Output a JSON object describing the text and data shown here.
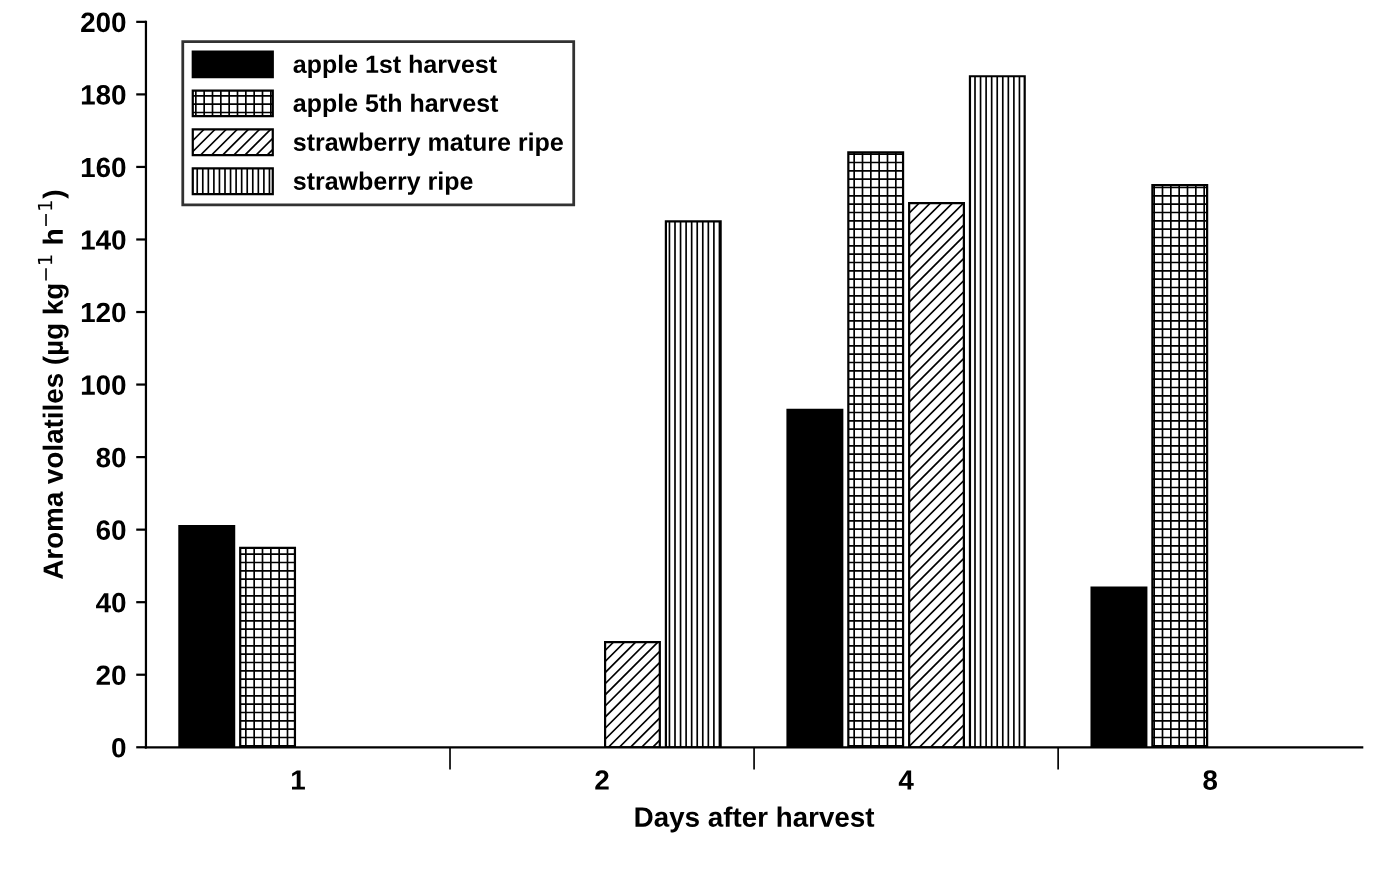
{
  "chart_data": {
    "type": "bar",
    "xlabel": "Days after harvest",
    "ylabel": "Aroma volatiles (µg kg$^{−1}$ h$^{−1}$)",
    "categories": [
      "1",
      "2",
      "4",
      "8"
    ],
    "series": [
      {
        "name": "apple 1st harvest",
        "color": "#000000",
        "values": [
          61,
          null,
          93,
          44
        ]
      },
      {
        "name": "apple 5th harvest",
        "color": "#000000",
        "values": [
          55,
          null,
          164,
          155
        ]
      },
      {
        "name": "strawberry mature ripe",
        "color": "#000000",
        "values": [
          null,
          29,
          150,
          null
        ]
      },
      {
        "name": "strawberry ripe",
        "color": "#000000",
        "values": [
          null,
          145,
          185,
          null
        ]
      }
    ],
    "ylim": [
      0,
      200
    ],
    "yticks": [
      0,
      20,
      40,
      60,
      80,
      100,
      120,
      140,
      160,
      180,
      200
    ],
    "legend": "top left",
    "grid": false
  }
}
